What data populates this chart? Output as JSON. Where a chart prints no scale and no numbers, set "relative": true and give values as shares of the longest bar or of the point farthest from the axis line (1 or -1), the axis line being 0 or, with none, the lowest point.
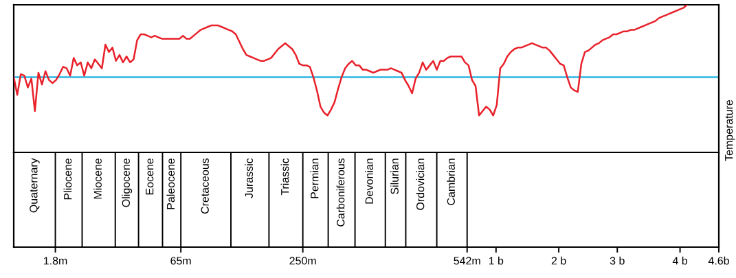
{
  "chart_data": [
    {
      "type": "line",
      "relative": true,
      "ylabel": "Temperature",
      "categories": [
        null,
        null,
        null,
        null,
        null,
        null,
        null,
        null,
        null,
        null,
        null,
        null,
        null,
        null,
        null,
        null,
        null,
        null,
        null,
        null,
        null,
        null,
        null,
        null,
        null,
        null,
        null,
        null,
        null,
        null,
        null,
        null,
        null,
        null,
        null,
        null,
        null,
        null,
        null,
        null,
        null,
        null,
        null,
        null,
        null,
        null,
        null,
        null,
        null,
        null,
        null,
        null,
        null,
        null,
        null,
        null,
        null,
        null,
        null,
        null,
        null,
        null,
        null,
        null,
        null,
        null,
        null,
        null,
        null,
        null,
        null,
        null,
        null,
        null,
        null,
        null,
        null,
        null,
        null,
        null,
        null,
        null,
        null,
        null,
        null,
        null,
        null,
        null,
        null,
        null,
        null,
        null,
        null,
        null,
        null,
        null,
        null,
        null,
        null,
        null,
        null,
        null,
        null,
        null,
        null,
        null,
        null,
        null,
        null,
        null,
        null,
        null,
        null,
        null,
        null,
        null,
        null,
        null,
        null,
        null,
        null,
        null,
        null,
        null,
        null,
        null,
        null,
        null,
        null,
        null,
        null,
        null,
        null,
        null,
        null,
        null,
        null,
        null,
        null,
        null,
        null,
        null,
        null,
        null,
        null,
        null,
        null,
        null,
        null,
        null,
        null,
        null,
        null,
        null,
        null,
        null,
        null,
        null,
        null,
        null,
        null,
        null,
        null,
        null,
        null,
        null,
        null,
        null,
        null,
        null,
        null,
        null,
        null,
        null,
        null,
        null,
        null,
        null,
        null,
        null,
        null,
        null,
        null,
        null,
        null,
        null,
        null,
        null,
        null,
        null,
        null,
        null
      ],
      "series": [
        {
          "color": "#e8212a",
          "values": [
            0.51,
            0.39,
            0.53,
            0.52,
            0.44,
            0.5,
            0.28,
            0.54,
            0.46,
            0.55,
            0.49,
            0.47,
            0.49,
            0.53,
            0.58,
            0.57,
            0.52,
            0.64,
            0.59,
            0.61,
            0.52,
            0.61,
            0.57,
            0.63,
            0.6,
            0.57,
            0.73,
            0.68,
            0.71,
            0.62,
            0.66,
            0.61,
            0.65,
            0.61,
            0.63,
            0.76,
            0.8,
            0.8,
            0.79,
            0.78,
            0.79,
            0.78,
            0.77,
            0.77,
            0.77,
            0.77,
            0.77,
            0.77,
            0.79,
            0.77,
            0.77,
            0.79,
            0.81,
            0.83,
            0.84,
            0.85,
            0.86,
            0.86,
            0.86,
            0.85,
            0.84,
            0.83,
            0.82,
            0.8,
            0.75,
            0.7,
            0.66,
            0.65,
            0.64,
            0.63,
            0.62,
            0.62,
            0.63,
            0.64,
            0.67,
            0.7,
            0.72,
            0.74,
            0.72,
            0.7,
            0.66,
            0.6,
            0.59,
            0.59,
            0.58,
            0.51,
            0.42,
            0.31,
            0.27,
            0.25,
            0.29,
            0.34,
            0.43,
            0.51,
            0.57,
            0.6,
            0.62,
            0.59,
            0.59,
            0.56,
            0.56,
            0.55,
            0.54,
            0.55,
            0.56,
            0.56,
            0.56,
            0.57,
            0.56,
            0.55,
            0.54,
            0.49,
            0.45,
            0.4,
            0.5,
            0.54,
            0.61,
            0.56,
            0.59,
            0.62,
            0.56,
            0.62,
            0.62,
            0.64,
            0.65,
            0.65,
            0.65,
            0.65,
            0.61,
            0.59,
            0.49,
            0.45,
            0.25,
            0.28,
            0.31,
            0.29,
            0.25,
            0.32,
            0.57,
            0.6,
            0.65,
            0.68,
            0.7,
            0.71,
            0.71,
            0.72,
            0.73,
            0.74,
            0.73,
            0.72,
            0.71,
            0.71,
            0.69,
            0.66,
            0.63,
            0.6,
            0.59,
            0.51,
            0.44,
            0.42,
            0.41,
            0.6,
            0.68,
            0.69,
            0.71,
            0.73,
            0.74,
            0.76,
            0.77,
            0.78,
            0.8,
            0.8,
            0.81,
            0.82,
            0.82,
            0.83,
            0.83,
            0.84,
            0.85,
            0.86,
            0.87,
            0.88,
            0.89,
            0.91,
            0.92,
            0.93,
            0.94,
            0.95,
            0.96,
            0.97,
            0.98,
            1.0
          ]
        }
      ],
      "ref_lines": [
        {
          "axis": "y",
          "value": 0.51,
          "color": "#1ab0e0"
        }
      ],
      "annotations": [
        "1.8m",
        "65m",
        "250m",
        "542m",
        "1 b",
        "2 b",
        "3 b",
        "4 b",
        "4.6b"
      ]
    },
    {
      "type": "other",
      "annotations": [
        "Quaternary",
        "Pliocene",
        "Miocene",
        "Oligocene",
        "Eocene",
        "Paleocene",
        "Cretaceous",
        "Jurassic",
        "Triassic",
        "Permian",
        "Carboniferous",
        "Devonian",
        "Silurian",
        "Ordovician",
        "Cambrian"
      ]
    }
  ]
}
